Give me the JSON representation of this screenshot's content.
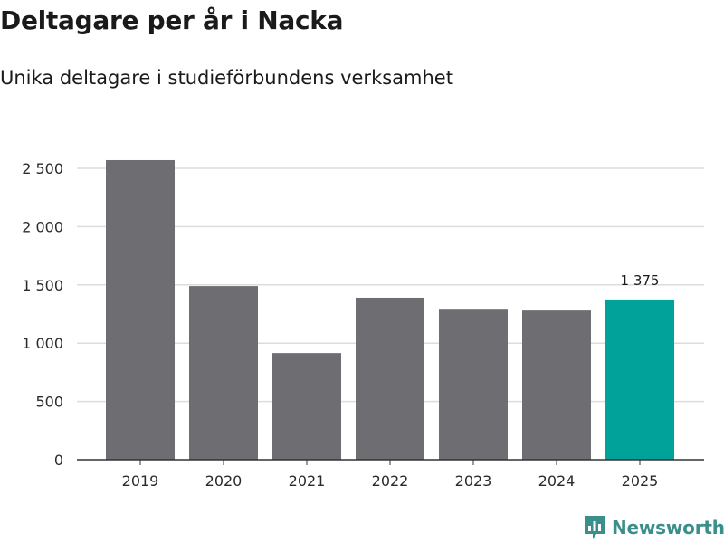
{
  "title": "Deltagare per år i Nacka",
  "subtitle": "Unika deltagare i studieförbundens verksamhet",
  "brand": {
    "name": "Newsworthy",
    "icon": "newsworthy-logo-icon",
    "color": "#3a8f8a"
  },
  "chart_data": {
    "type": "bar",
    "categories": [
      "2019",
      "2020",
      "2021",
      "2022",
      "2023",
      "2024",
      "2025"
    ],
    "values": [
      2570,
      1490,
      915,
      1390,
      1295,
      1280,
      1375
    ],
    "ylim": [
      0,
      2500
    ],
    "yticks": [
      0,
      500,
      1000,
      1500,
      2000,
      2500
    ],
    "ytick_labels": [
      "0",
      "500",
      "1 000",
      "1 500",
      "2 000",
      "2 500"
    ],
    "data_labels": [
      {
        "category": "2025",
        "text": "1 375"
      }
    ],
    "grid": true,
    "bar_color": "#6e6d72",
    "highlight_color": "#00a29a",
    "highlight_category": "2025"
  }
}
